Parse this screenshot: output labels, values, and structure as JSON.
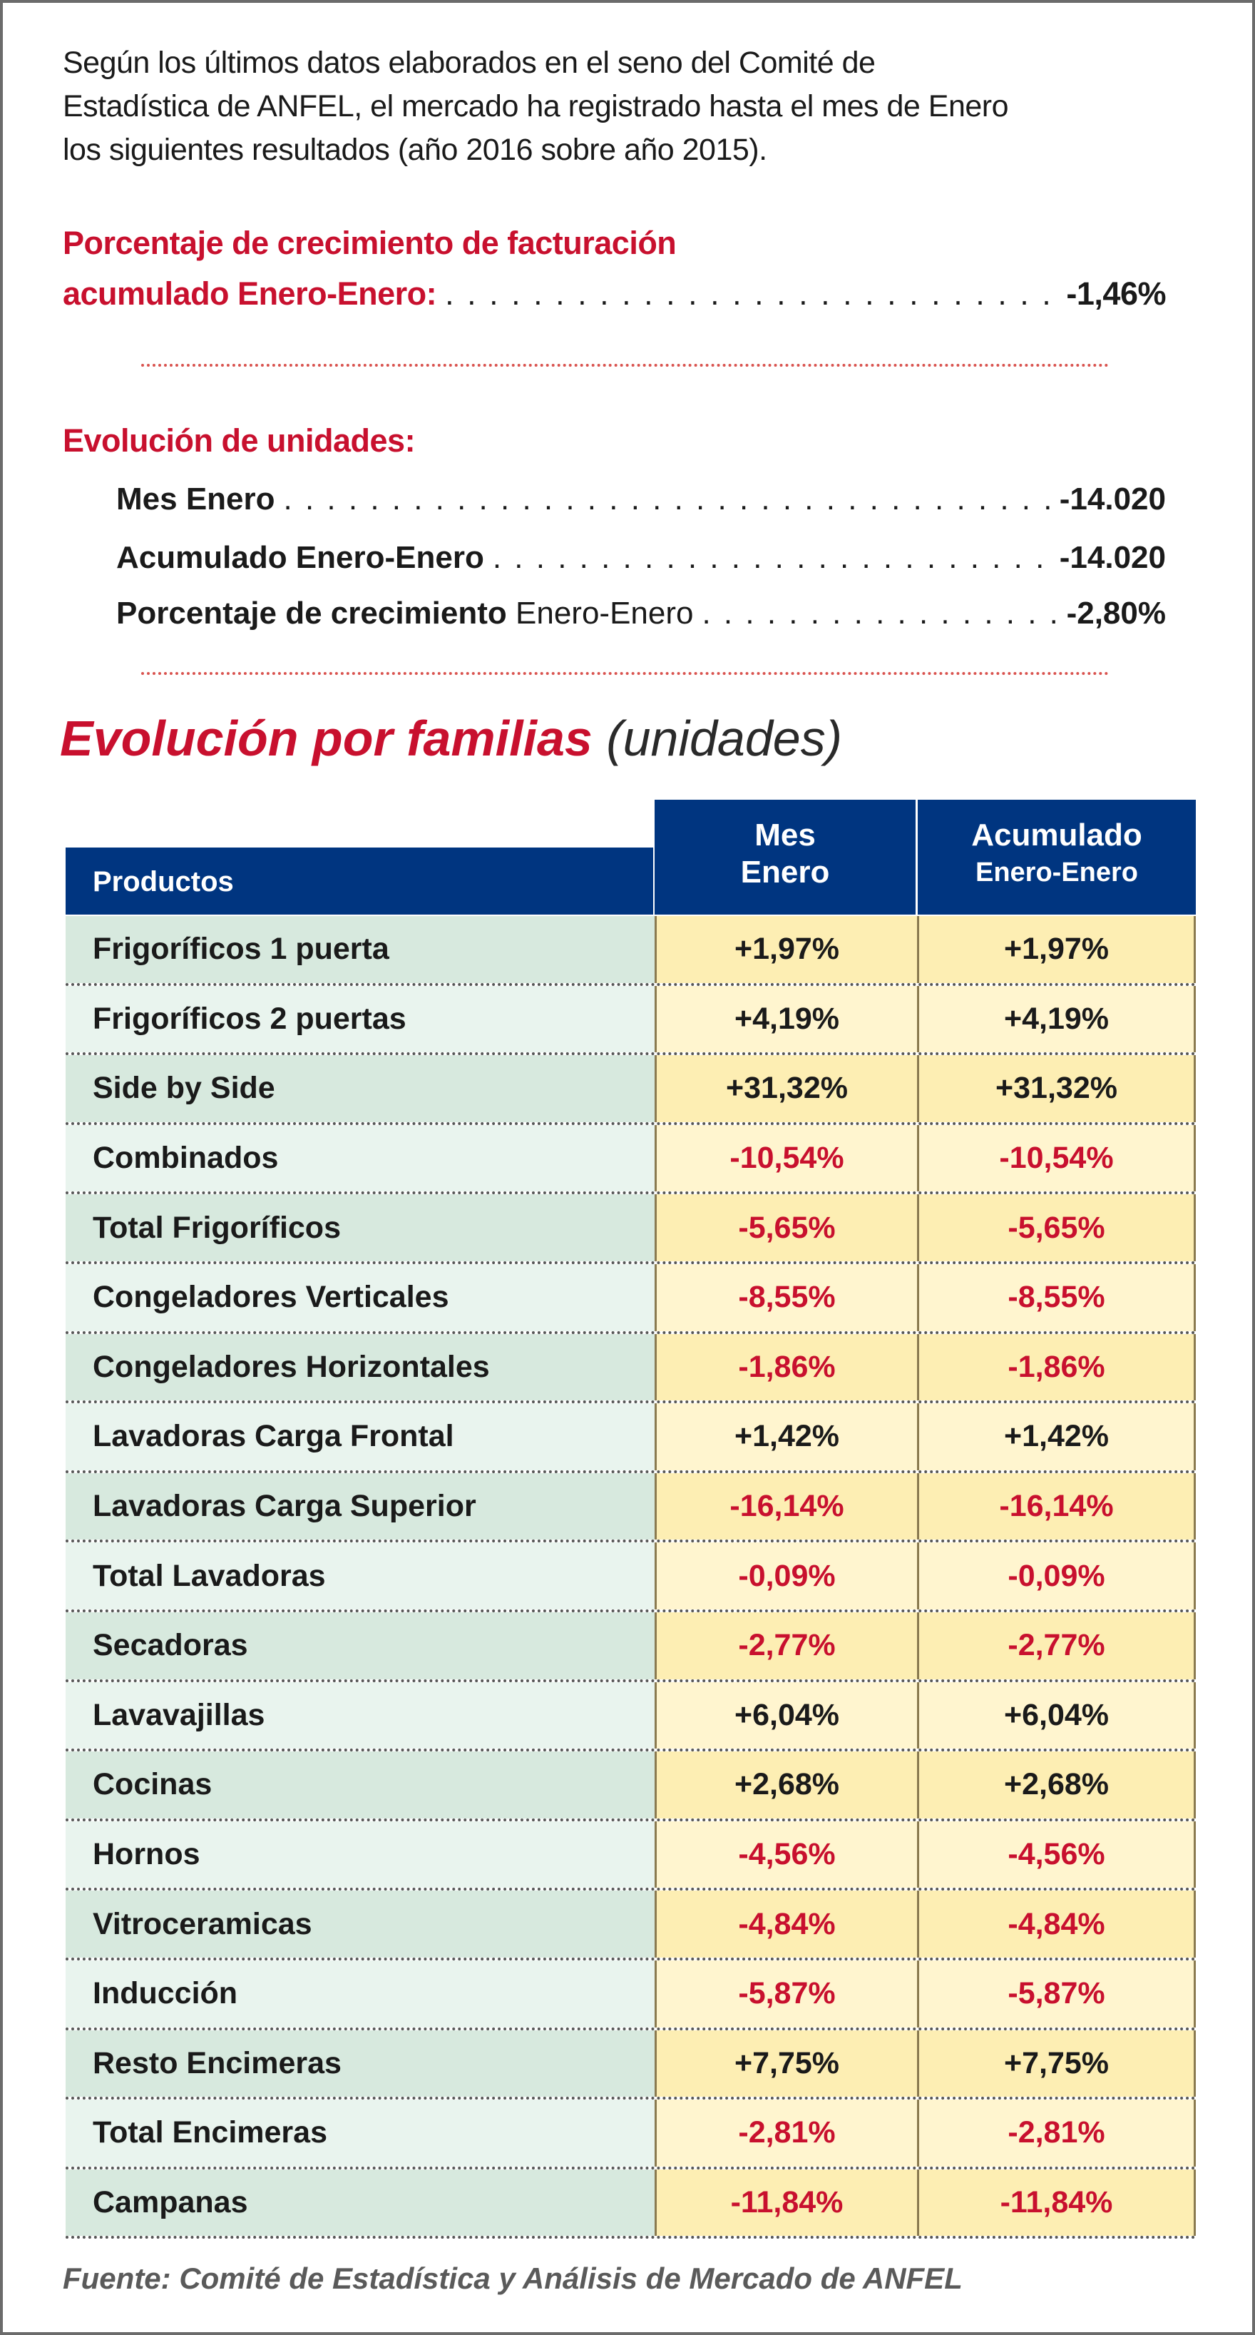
{
  "intro": [
    "Según los últimos datos elaborados en el seno del Comité de",
    "Estadística de ANFEL, el mercado ha registrado hasta el mes de Enero",
    "los siguientes resultados (año 2016 sobre año 2015)."
  ],
  "facturacion": {
    "line1": "Porcentaje de crecimiento de facturación",
    "line2": "acumulado Enero-Enero:",
    "value": "-1,46%"
  },
  "unidades": {
    "heading": "Evolución de unidades:",
    "mes_label": "Mes Enero",
    "mes_value": "-14.020",
    "acum_label": "Acumulado Enero-Enero",
    "acum_value": "-14.020",
    "pct_label_bold": "Porcentaje de crecimiento",
    "pct_label_light": "Enero-Enero",
    "pct_value": "-2,80%"
  },
  "familias": {
    "title": "Evolución por familias",
    "title_suffix": "(unidades)",
    "headers": {
      "productos": "Productos",
      "mes1": "Mes",
      "mes2": "Enero",
      "acu1": "Acumulado",
      "acu2": "Enero-Enero"
    },
    "rows": [
      [
        "Frigoríficos 1 puerta",
        "+1,97%",
        "+1,97%"
      ],
      [
        "Frigoríficos 2 puertas",
        "+4,19%",
        "+4,19%"
      ],
      [
        "Side by Side",
        "+31,32%",
        "+31,32%"
      ],
      [
        "Combinados",
        "-10,54%",
        "-10,54%"
      ],
      [
        "Total Frigoríficos",
        "-5,65%",
        "-5,65%"
      ],
      [
        "Congeladores Verticales",
        "-8,55%",
        "-8,55%"
      ],
      [
        "Congeladores Horizontales",
        "-1,86%",
        "-1,86%"
      ],
      [
        "Lavadoras Carga Frontal",
        "+1,42%",
        "+1,42%"
      ],
      [
        "Lavadoras Carga Superior",
        "-16,14%",
        "-16,14%"
      ],
      [
        "Total Lavadoras",
        "-0,09%",
        "-0,09%"
      ],
      [
        "Secadoras",
        "-2,77%",
        "-2,77%"
      ],
      [
        "Lavavajillas",
        "+6,04%",
        "+6,04%"
      ],
      [
        "Cocinas",
        "+2,68%",
        "+2,68%"
      ],
      [
        "Hornos",
        "-4,56%",
        "-4,56%"
      ],
      [
        "Vitroceramicas",
        "-4,84%",
        "-4,84%"
      ],
      [
        "Inducción",
        "-5,87%",
        "-5,87%"
      ],
      [
        "Resto Encimeras",
        "+7,75%",
        "+7,75%"
      ],
      [
        "Total Encimeras",
        "-2,81%",
        "-2,81%"
      ],
      [
        "Campanas",
        "-11,84%",
        "-11,84%"
      ]
    ]
  },
  "footer": "Fuente: Comité de Estadística y Análisis de Mercado de ANFEL",
  "colors": {
    "accent_red": "#c8102e",
    "header_navy": "#003580",
    "row_green": "#d7e9de",
    "cell_yellow": "#fdeeb3"
  }
}
